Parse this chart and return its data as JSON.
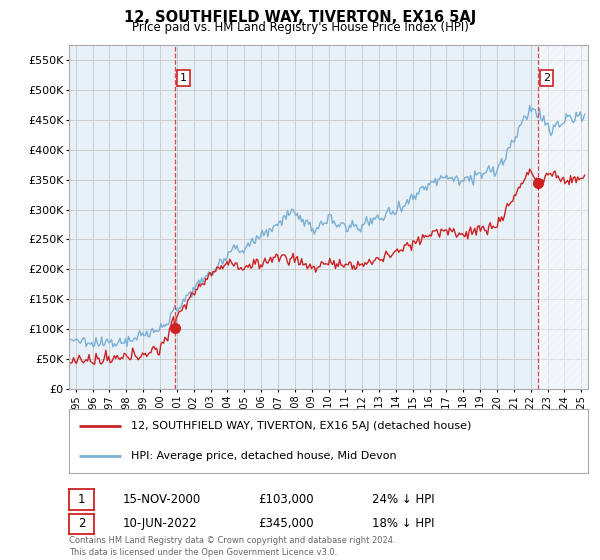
{
  "title": "12, SOUTHFIELD WAY, TIVERTON, EX16 5AJ",
  "subtitle": "Price paid vs. HM Land Registry's House Price Index (HPI)",
  "legend_label_red": "12, SOUTHFIELD WAY, TIVERTON, EX16 5AJ (detached house)",
  "legend_label_blue": "HPI: Average price, detached house, Mid Devon",
  "transaction1_date": "15-NOV-2000",
  "transaction1_price": "£103,000",
  "transaction1_hpi": "24% ↓ HPI",
  "transaction1_year": 2000.88,
  "transaction1_value": 103000,
  "transaction2_date": "10-JUN-2022",
  "transaction2_price": "£345,000",
  "transaction2_hpi": "18% ↓ HPI",
  "transaction2_year": 2022.44,
  "transaction2_value": 345000,
  "footer": "Contains HM Land Registry data © Crown copyright and database right 2024.\nThis data is licensed under the Open Government Licence v3.0.",
  "vline1_x": 2000.88,
  "vline2_x": 2022.44,
  "xlim_left": 1994.6,
  "xlim_right": 2025.4,
  "ylim": [
    0,
    575000
  ],
  "yticks": [
    0,
    50000,
    100000,
    150000,
    200000,
    250000,
    300000,
    350000,
    400000,
    450000,
    500000,
    550000
  ],
  "ytick_labels": [
    "£0",
    "£50K",
    "£100K",
    "£150K",
    "£200K",
    "£250K",
    "£300K",
    "£350K",
    "£400K",
    "£450K",
    "£500K",
    "£550K"
  ],
  "background_color": "#ffffff",
  "chart_bg_color": "#e8f0f8",
  "hatch_bg_color": "#d8e8f0",
  "grid_color": "#cccccc",
  "red_color": "#cc2222",
  "blue_color": "#7ab0d4",
  "vline_color": "#dd4444",
  "box_edge_color": "#cc2222",
  "xtick_years": [
    1995,
    1996,
    1997,
    1998,
    1999,
    2000,
    2001,
    2002,
    2003,
    2004,
    2005,
    2006,
    2007,
    2008,
    2009,
    2010,
    2011,
    2012,
    2013,
    2014,
    2015,
    2016,
    2017,
    2018,
    2019,
    2020,
    2021,
    2022,
    2023,
    2024,
    2025
  ]
}
